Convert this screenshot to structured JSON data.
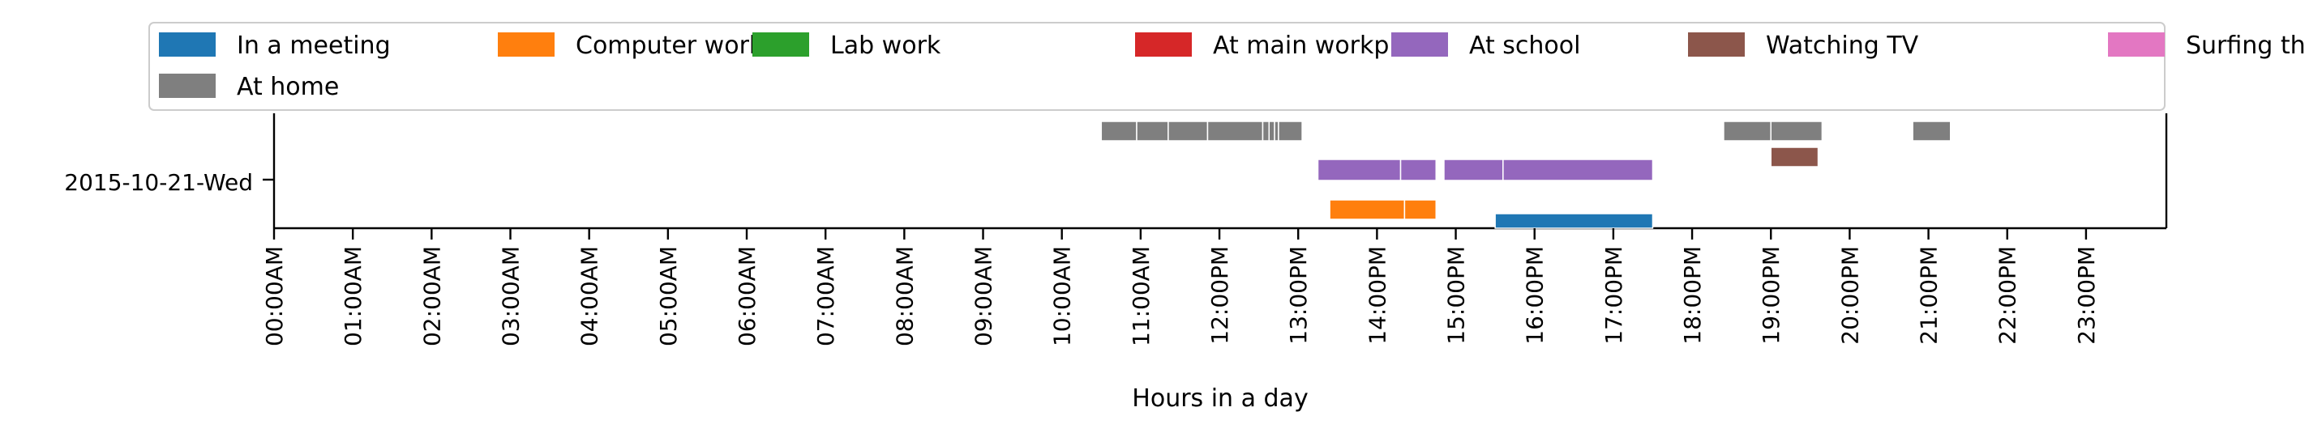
{
  "chart_data": {
    "type": "timeline",
    "xlabel": "Hours in a day",
    "ylabel": "",
    "xlim": [
      0,
      24
    ],
    "row_label": "2015-10-21-Wed",
    "x_tick_labels": [
      "00:00AM",
      "01:00AM",
      "02:00AM",
      "03:00AM",
      "04:00AM",
      "05:00AM",
      "06:00AM",
      "07:00AM",
      "08:00AM",
      "09:00AM",
      "10:00AM",
      "11:00AM",
      "12:00PM",
      "13:00PM",
      "14:00PM",
      "15:00PM",
      "16:00PM",
      "17:00PM",
      "18:00PM",
      "19:00PM",
      "20:00PM",
      "21:00PM",
      "22:00PM",
      "23:00PM"
    ],
    "legend_position": "top",
    "series": [
      {
        "name": "In a meeting",
        "color": "#1f77b4",
        "lane": 0,
        "segments": [
          [
            15.5,
            17.5
          ]
        ]
      },
      {
        "name": "Computer work",
        "color": "#ff7f0e",
        "lane": 1,
        "segments": [
          [
            13.4,
            14.35
          ],
          [
            14.35,
            14.75
          ]
        ]
      },
      {
        "name": "Lab work",
        "color": "#2ca02c",
        "lane": 1,
        "segments": []
      },
      {
        "name": "At main workplace",
        "color": "#d62728",
        "lane": 1,
        "segments": []
      },
      {
        "name": "At school",
        "color": "#9467bd",
        "lane": 3,
        "segments": [
          [
            13.25,
            14.3
          ],
          [
            14.3,
            14.75
          ],
          [
            14.85,
            15.6
          ],
          [
            15.6,
            17.5
          ]
        ]
      },
      {
        "name": "Watching TV",
        "color": "#8c564b",
        "lane": 2,
        "segments": [
          [
            19.0,
            19.6
          ]
        ]
      },
      {
        "name": "Surfing the internet",
        "color": "#e377c2",
        "lane": 2,
        "segments": []
      },
      {
        "name": "At home",
        "color": "#7f7f7f",
        "lane": 4,
        "segments": [
          [
            10.5,
            10.95
          ],
          [
            10.95,
            11.35
          ],
          [
            11.35,
            11.85
          ],
          [
            11.85,
            12.55
          ],
          [
            12.55,
            12.63
          ],
          [
            12.63,
            12.7
          ],
          [
            12.7,
            12.75
          ],
          [
            12.75,
            13.05
          ],
          [
            18.4,
            19.0
          ],
          [
            19.0,
            19.65
          ],
          [
            20.8,
            21.28
          ]
        ]
      }
    ]
  }
}
